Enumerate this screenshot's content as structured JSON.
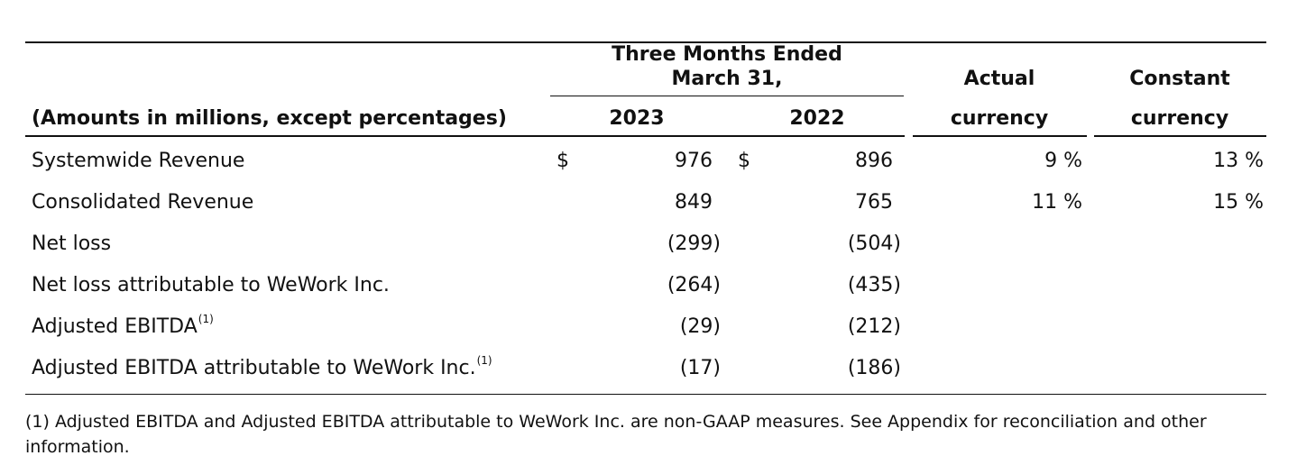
{
  "header": {
    "period_line1": "Three Months Ended",
    "period_line2": "March 31,",
    "row_label_header": "(Amounts in millions, except percentages)",
    "year_2023": "2023",
    "year_2022": "2022",
    "actual_line1": "Actual",
    "actual_line2": "currency",
    "constant_line1": "Constant",
    "constant_line2": "currency"
  },
  "rows": [
    {
      "label": "Systemwide Revenue",
      "footnote": "",
      "currency_2023": "$",
      "value_2023": "976",
      "currency_2022": "$",
      "value_2022": "896",
      "actual": "9 %",
      "constant": "13 %"
    },
    {
      "label": "Consolidated Revenue",
      "footnote": "",
      "currency_2023": "",
      "value_2023": "849",
      "currency_2022": "",
      "value_2022": "765",
      "actual": "11 %",
      "constant": "15 %"
    },
    {
      "label": "Net loss",
      "footnote": "",
      "currency_2023": "",
      "value_2023": "(299)",
      "currency_2022": "",
      "value_2022": "(504)",
      "actual": "",
      "constant": ""
    },
    {
      "label": "Net loss attributable to WeWork Inc.",
      "footnote": "",
      "currency_2023": "",
      "value_2023": "(264)",
      "currency_2022": "",
      "value_2022": "(435)",
      "actual": "",
      "constant": ""
    },
    {
      "label": "Adjusted EBITDA",
      "footnote": "(1)",
      "currency_2023": "",
      "value_2023": "(29)",
      "currency_2022": "",
      "value_2022": "(212)",
      "actual": "",
      "constant": ""
    },
    {
      "label": "Adjusted EBITDA attributable to WeWork Inc.",
      "footnote": "(1)",
      "currency_2023": "",
      "value_2023": "(17)",
      "currency_2022": "",
      "value_2022": "(186)",
      "actual": "",
      "constant": ""
    }
  ],
  "footnote_text": "(1) Adjusted EBITDA and Adjusted EBITDA attributable to WeWork Inc. are non-GAAP measures. See Appendix for reconciliation and other information."
}
